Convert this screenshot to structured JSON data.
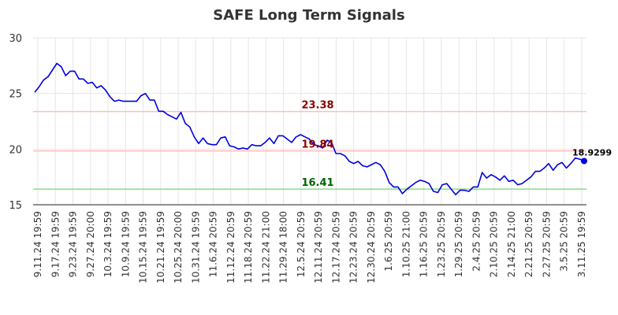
{
  "chart_data": {
    "type": "line",
    "title": "SAFE Long Term Signals",
    "xlabel": "",
    "ylabel": "",
    "ylim": [
      15,
      30
    ],
    "yticks": [
      "15",
      "20",
      "25",
      "30"
    ],
    "grid": true,
    "x_tick_labels": [
      "9.11.24 19:59",
      "9.17.24 19:59",
      "9.23.24 19:59",
      "9.27.24 20:00",
      "10.3.24 19:59",
      "10.9.24 19:59",
      "10.15.24 19:59",
      "10.21.24 19:59",
      "10.25.24 20:00",
      "10.31.24 19:59",
      "11.6.24 20:59",
      "11.12.24 20:59",
      "11.18.24 20:59",
      "11.22.24 21:00",
      "11.29.24 18:00",
      "12.5.24 20:59",
      "12.11.24 20:59",
      "12.17.24 20:59",
      "12.23.24 20:59",
      "12.30.24 20:59",
      "1.6.25 20:59",
      "1.10.25 21:00",
      "1.16.25 20:59",
      "1.23.25 20:59",
      "1.29.25 20:59",
      "2.4.25 20:59",
      "2.10.25 20:59",
      "2.14.25 21:00",
      "2.21.25 20:59",
      "2.27.25 20:59",
      "3.5.25 20:59",
      "3.11.25 19:59"
    ],
    "series": [
      {
        "color": "#0000dd",
        "values": [
          25.1,
          25.6,
          26.2,
          26.5,
          27.1,
          27.7,
          27.4,
          26.6,
          27.0,
          27.0,
          26.3,
          26.3,
          25.9,
          26.0,
          25.5,
          25.7,
          25.3,
          24.7,
          24.3,
          24.4,
          24.3,
          24.3,
          24.3,
          24.3,
          24.8,
          25.0,
          24.4,
          24.4,
          23.4,
          23.4,
          23.1,
          22.9,
          22.7,
          23.3,
          22.3,
          22.0,
          21.1,
          20.5,
          21.0,
          20.5,
          20.4,
          20.4,
          21.0,
          21.1,
          20.3,
          20.2,
          20.0,
          20.1,
          20.0,
          20.4,
          20.3,
          20.3,
          20.6,
          21.0,
          20.5,
          21.2,
          21.2,
          20.9,
          20.6,
          21.1,
          21.3,
          21.1,
          20.9,
          20.4,
          20.3,
          20.1,
          20.8,
          20.6,
          19.6,
          19.6,
          19.4,
          18.9,
          18.7,
          18.9,
          18.5,
          18.4,
          18.6,
          18.8,
          18.6,
          18.0,
          17.0,
          16.6,
          16.6,
          16.0,
          16.4,
          16.7,
          17.0,
          17.2,
          17.1,
          16.9,
          16.2,
          16.1,
          16.8,
          16.9,
          16.4,
          15.9,
          16.3,
          16.3,
          16.2,
          16.6,
          16.6,
          17.9,
          17.4,
          17.7,
          17.5,
          17.2,
          17.6,
          17.1,
          17.2,
          16.8,
          16.9,
          17.2,
          17.5,
          18.0,
          18.0,
          18.3,
          18.7,
          18.1,
          18.6,
          18.8,
          18.3,
          18.7,
          19.2,
          19.1,
          18.93
        ]
      }
    ],
    "last_value_label": "18.9299",
    "hlines": [
      {
        "value": 23.38,
        "label": "23.38",
        "line_color": "#ffbbbb",
        "label_color": "#8b0000"
      },
      {
        "value": 19.84,
        "label": "19.84",
        "line_color": "#ffbbbb",
        "label_color": "#8b0000"
      },
      {
        "value": 16.41,
        "label": "16.41",
        "line_color": "#88dd88",
        "label_color": "#006400"
      }
    ]
  }
}
